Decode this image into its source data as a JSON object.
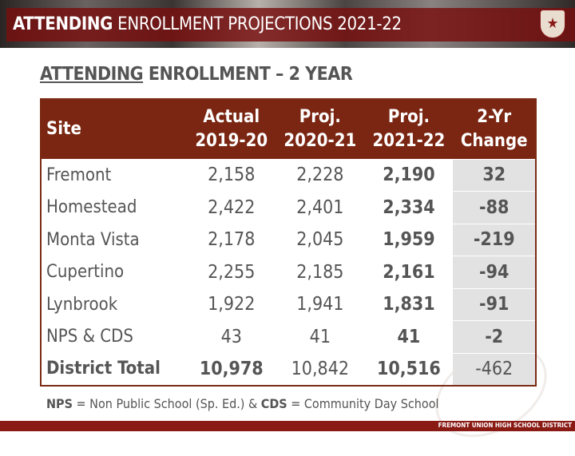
{
  "header": {
    "title_bold": "ATTENDING",
    "title_rest": " ENROLLMENT PROJECTIONS 2021-22"
  },
  "subtitle": {
    "underlined": "ATTENDING",
    "rest": " ENROLLMENT – 2 YEAR"
  },
  "table": {
    "columns": [
      {
        "l1": "Site",
        "l2": ""
      },
      {
        "l1": "Actual",
        "l2": "2019-20"
      },
      {
        "l1": "Proj.",
        "l2": "2020-21"
      },
      {
        "l1": "Proj.",
        "l2": "2021-22"
      },
      {
        "l1": "2-Yr",
        "l2": "Change"
      }
    ],
    "rows": [
      [
        "Fremont",
        "2,158",
        "2,228",
        "2,190",
        "32"
      ],
      [
        "Homestead",
        "2,422",
        "2,401",
        "2,334",
        "-88"
      ],
      [
        "Monta Vista",
        "2,178",
        "2,045",
        "1,959",
        "-219"
      ],
      [
        "Cupertino",
        "2,255",
        "2,185",
        "2,161",
        "-94"
      ],
      [
        "Lynbrook",
        "1,922",
        "1,941",
        "1,831",
        "-91"
      ],
      [
        "NPS & CDS",
        "43",
        "41",
        "41",
        "-2"
      ],
      [
        "District Total",
        "10,978",
        "10,842",
        "10,516",
        "-462"
      ]
    ]
  },
  "note": {
    "a": "NPS",
    "b": " = Non Public School (Sp. Ed.)  & ",
    "c": "CDS",
    "d": " = Community Day School"
  },
  "footer": "FREMONT UNION HIGH SCHOOL DISTRICT",
  "colors": {
    "brand": "#7a2612",
    "change_bg": "#e2e2e2"
  }
}
